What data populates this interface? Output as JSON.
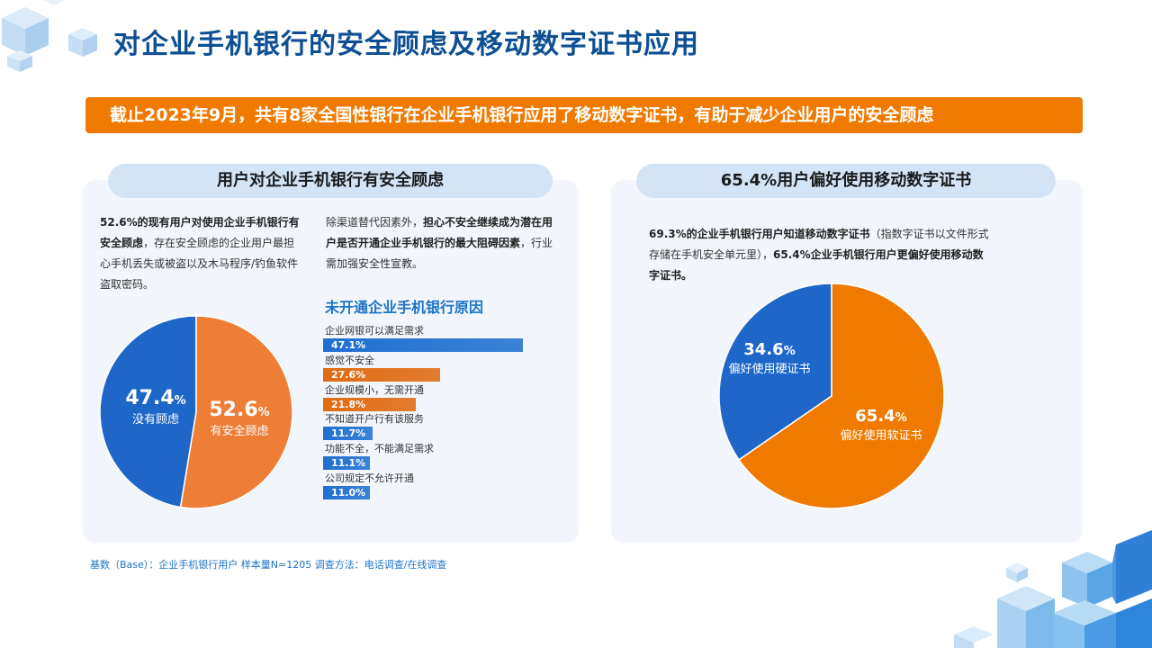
{
  "page": {
    "title": "对企业手机银行的安全顾虑及移动数字证书应用",
    "banner": "截止2023年9月，共有8家全国性银行在企业手机银行应用了移动数字证书，有助于减少企业用户的安全顾虑",
    "footnote": "基数（Base）：企业手机银行用户 样本量N=1205 调查方法：电话调查/在线调查"
  },
  "left_panel": {
    "heading": "用户对企业手机银行有安全顾虑",
    "para1_bold": "52.6%的现有用户对使用企业手机银行有安全顾虑",
    "para1_rest": "，存在安全顾虑的企业用户最担心手机丢失或被盗以及木马程序/钓鱼软件盗取密码。",
    "para2_start": "除渠道替代因素外，",
    "para2_bold": "担心不安全继续成为潜在用户是否开通企业手机银行的最大阻碍因素",
    "para2_end": "，行业需加强安全性宣教。",
    "bar_title": "未开通企业手机银行原因",
    "pie_labels": {
      "a_pct": "47.4",
      "a_unit": "%",
      "a_cap": "没有顾虑",
      "b_pct": "52.6",
      "b_unit": "%",
      "b_cap": "有安全顾虑"
    }
  },
  "right_panel": {
    "heading": "65.4%用户偏好使用移动数字证书",
    "para_bold1": "69.3%的企业手机银行用户知道移动数字证书",
    "para_normal": "（指数字证书以文件形式存储在手机安全单元里），",
    "para_bold2": "65.4%企业手机银行用户更偏好使用移动数字证书。",
    "pie_labels": {
      "a_pct": "34.6",
      "a_unit": "%",
      "a_cap": "偏好使用硬证书",
      "b_pct": "65.4",
      "b_unit": "%",
      "b_cap": "偏好使用软证书"
    }
  },
  "colors": {
    "title": "#0d4f93",
    "orange": "#f07a00",
    "blue": "#1f6fd1",
    "pie_orange_left": "#ee7d35",
    "pie_blue": "#1e66c8"
  },
  "chart_data": [
    {
      "type": "pie",
      "labels": [
        "没有顾虑",
        "有安全顾虑"
      ],
      "values": [
        47.4,
        52.6
      ],
      "colors": [
        "#1e66c8",
        "#ee7d35"
      ]
    },
    {
      "type": "bar",
      "orientation": "horizontal",
      "categories": [
        "企业网银可以满足需求",
        "感觉不安全",
        "企业规模小，无需开通",
        "不知道开户行有该服务",
        "功能不全，不能满足需求",
        "公司规定不允许开通"
      ],
      "values": [
        47.1,
        27.6,
        21.8,
        11.7,
        11.1,
        11.0
      ],
      "value_labels": [
        "47.1%",
        "27.6%",
        "21.8%",
        "11.7%",
        "11.1%",
        "11.0%"
      ],
      "colors": [
        "#1f6fd1",
        "#e06a10",
        "#e06a10",
        "#1f6fd1",
        "#1f6fd1",
        "#1f6fd1"
      ]
    },
    {
      "type": "pie",
      "labels": [
        "偏好使用硬证书",
        "偏好使用软证书"
      ],
      "values": [
        34.6,
        65.4
      ],
      "colors": [
        "#1e66c8",
        "#f07a00"
      ]
    }
  ]
}
